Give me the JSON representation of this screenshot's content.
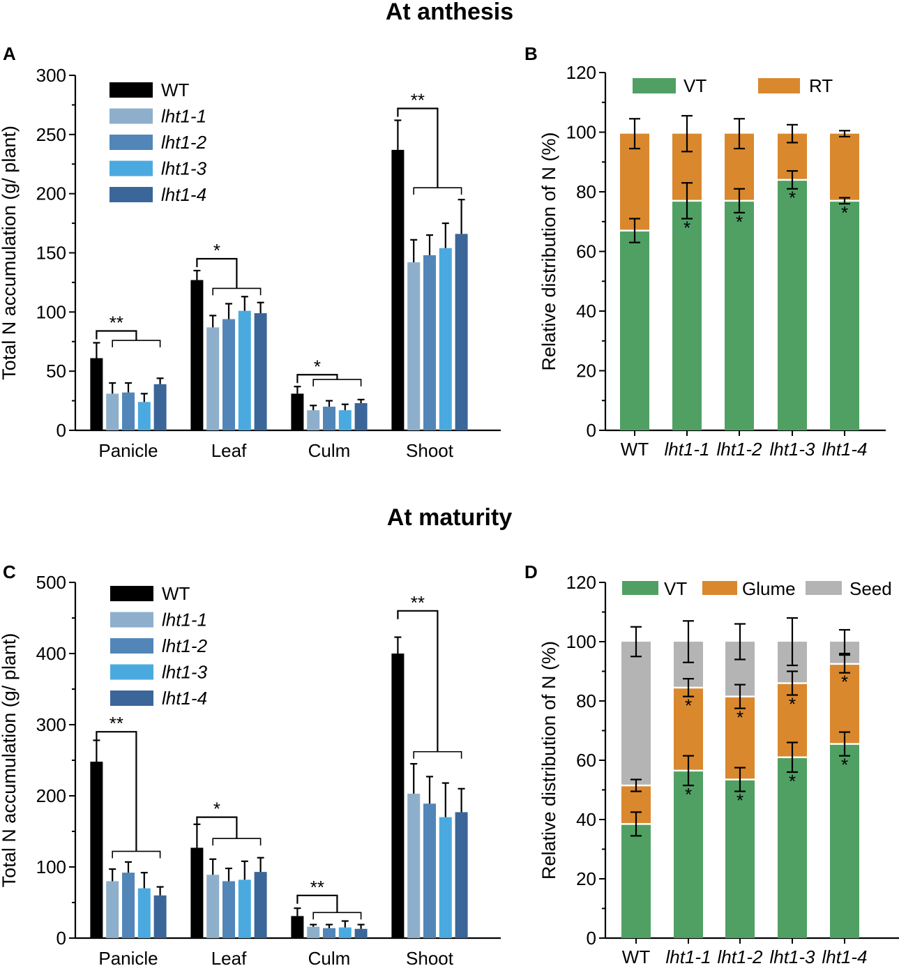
{
  "titles": {
    "top": "At anthesis",
    "bottom": "At maturity"
  },
  "panels": {
    "a": "A",
    "b": "B",
    "c": "C",
    "d": "D"
  },
  "colors": {
    "WT": "#000000",
    "lht1-1": "#8eafcc",
    "lht1-2": "#5286b8",
    "lht1-3": "#4aaae0",
    "lht1-4": "#3b6699",
    "VT": "#50a064",
    "RT": "#d9882e",
    "Glume": "#d9882e",
    "Seed": "#b4b4b4",
    "bracket": "#000000",
    "error": "#000000"
  },
  "chart_data": [
    {
      "id": "A",
      "type": "bar",
      "ylabel": "Total N accumulation (g/ plant)",
      "ylim": [
        0,
        300
      ],
      "yticks": [
        0,
        50,
        100,
        150,
        200,
        250,
        300
      ],
      "categories": [
        "Panicle",
        "Leaf",
        "Culm",
        "Shoot"
      ],
      "series": [
        {
          "name": "WT",
          "italic": false,
          "values": [
            61,
            127,
            31,
            237
          ],
          "errors": [
            13,
            8,
            6,
            25
          ]
        },
        {
          "name": "lht1-1",
          "italic": true,
          "values": [
            31,
            87,
            17,
            142
          ],
          "errors": [
            9,
            10,
            4,
            19
          ]
        },
        {
          "name": "lht1-2",
          "italic": true,
          "values": [
            32,
            94,
            20,
            148
          ],
          "errors": [
            8,
            13,
            5,
            17
          ]
        },
        {
          "name": "lht1-3",
          "italic": true,
          "values": [
            24,
            101,
            17,
            154
          ],
          "errors": [
            7,
            12,
            5,
            21
          ]
        },
        {
          "name": "lht1-4",
          "italic": true,
          "values": [
            39,
            99,
            23,
            166
          ],
          "errors": [
            5,
            9,
            3,
            29
          ]
        }
      ],
      "significance": [
        "**",
        "*",
        "*",
        "**"
      ],
      "bracket_heights": [
        [
          84,
          76
        ],
        [
          145,
          120
        ],
        [
          47,
          43
        ],
        [
          272,
          205
        ]
      ]
    },
    {
      "id": "B",
      "type": "stacked-bar",
      "ylabel": "Relative distribution of N (%)",
      "ylim": [
        0,
        120
      ],
      "yticks": [
        0,
        20,
        40,
        60,
        80,
        100,
        120
      ],
      "categories": [
        "WT",
        "lht1-1",
        "lht1-2",
        "lht1-3",
        "lht1-4"
      ],
      "categories_italic": [
        false,
        true,
        true,
        true,
        true
      ],
      "series": [
        {
          "name": "VT",
          "values": [
            67,
            77,
            77,
            84,
            77
          ],
          "errors": [
            4,
            6,
            4,
            3,
            1
          ]
        },
        {
          "name": "RT",
          "values": [
            32.5,
            22.5,
            22.5,
            15.5,
            22.5
          ],
          "errors": [
            5,
            6,
            5,
            3,
            1
          ]
        }
      ],
      "significance_VT": [
        "",
        "*",
        "*",
        "*",
        "*"
      ]
    },
    {
      "id": "C",
      "type": "bar",
      "ylabel": "Total N accumulation (g/ plant)",
      "ylim": [
        0,
        500
      ],
      "yticks": [
        0,
        100,
        200,
        300,
        400,
        500
      ],
      "categories": [
        "Panicle",
        "Leaf",
        "Culm",
        "Shoot"
      ],
      "series": [
        {
          "name": "WT",
          "italic": false,
          "values": [
            248,
            127,
            31,
            400
          ],
          "errors": [
            30,
            33,
            11,
            23
          ]
        },
        {
          "name": "lht1-1",
          "italic": true,
          "values": [
            80,
            89,
            16,
            203
          ],
          "errors": [
            17,
            22,
            3,
            42
          ]
        },
        {
          "name": "lht1-2",
          "italic": true,
          "values": [
            92,
            80,
            14,
            189
          ],
          "errors": [
            15,
            18,
            5,
            38
          ]
        },
        {
          "name": "lht1-3",
          "italic": true,
          "values": [
            70,
            82,
            15,
            170
          ],
          "errors": [
            22,
            26,
            9,
            48
          ]
        },
        {
          "name": "lht1-4",
          "italic": true,
          "values": [
            60,
            93,
            13,
            177
          ],
          "errors": [
            12,
            20,
            6,
            33
          ]
        }
      ],
      "significance": [
        "**",
        "*",
        "**",
        "**"
      ],
      "bracket_heights": [
        [
          290,
          122
        ],
        [
          170,
          140
        ],
        [
          60,
          36
        ],
        [
          460,
          262
        ]
      ]
    },
    {
      "id": "D",
      "type": "stacked-bar",
      "ylabel": "Relative distribution of N (%)",
      "ylim": [
        0,
        120
      ],
      "yticks": [
        0,
        20,
        40,
        60,
        80,
        100,
        120
      ],
      "categories": [
        "WT",
        "lht1-1",
        "lht1-2",
        "lht1-3",
        "lht1-4"
      ],
      "categories_italic": [
        false,
        true,
        true,
        true,
        true
      ],
      "series": [
        {
          "name": "VT",
          "values": [
            38.5,
            56.5,
            53.5,
            61,
            65.5
          ],
          "errors": [
            4,
            5,
            4,
            5,
            4
          ]
        },
        {
          "name": "Glume",
          "values": [
            13,
            28,
            28,
            25,
            27
          ],
          "errors": [
            2,
            3,
            4,
            4,
            3
          ]
        },
        {
          "name": "Seed",
          "values": [
            48.5,
            15.5,
            18.5,
            14,
            7.5
          ],
          "errors": [
            5,
            7,
            6,
            8,
            4
          ]
        }
      ],
      "significance_VT": [
        "",
        "*",
        "*",
        "*",
        "*"
      ],
      "significance_Glume": [
        "",
        "*",
        "*",
        "*",
        "*"
      ]
    }
  ]
}
